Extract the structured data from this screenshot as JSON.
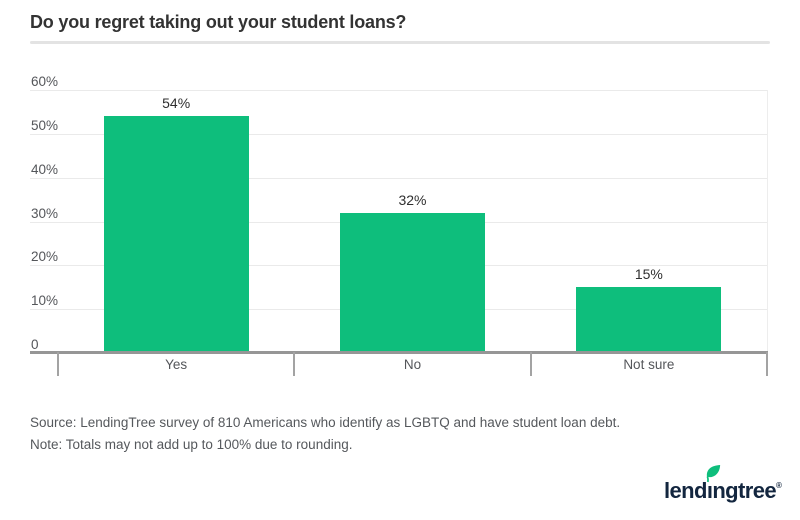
{
  "header": {
    "title": "Do you regret taking out your student loans?"
  },
  "chart_data": {
    "type": "bar",
    "title": "Do you regret taking out your student loans?",
    "categories": [
      "Yes",
      "No",
      "Not sure"
    ],
    "values": [
      54,
      32,
      15
    ],
    "value_labels": [
      "54%",
      "32%",
      "15%"
    ],
    "xlabel": "",
    "ylabel": "",
    "ylim": [
      0,
      60
    ],
    "y_tick_values": [
      0,
      10,
      20,
      30,
      40,
      50,
      60
    ],
    "y_tick_labels": [
      "0",
      "10%",
      "20%",
      "30%",
      "40%",
      "50%",
      "60%"
    ],
    "grid": "horizontal",
    "legend_position": "none",
    "bar_color": "#0ebe7c"
  },
  "footer": {
    "source": "Source: LendingTree survey of 810 Americans who identify as LGBTQ and have student loan debt.",
    "note": "Note: Totals may not add up to 100% due to rounding."
  },
  "logo": {
    "name": "lendingtree",
    "text_before_i": "lend",
    "dotless_i": "ı",
    "text_after_i": "ngtree",
    "trademark": "®",
    "leaf_color": "#0ebe7c",
    "navy_color": "#13263f"
  },
  "colors": {
    "accent_green": "#0ebe7c",
    "axis_gray": "#969696",
    "grid_gray": "#eaeaea",
    "text_gray": "#54565a",
    "title_dark": "#333333"
  }
}
